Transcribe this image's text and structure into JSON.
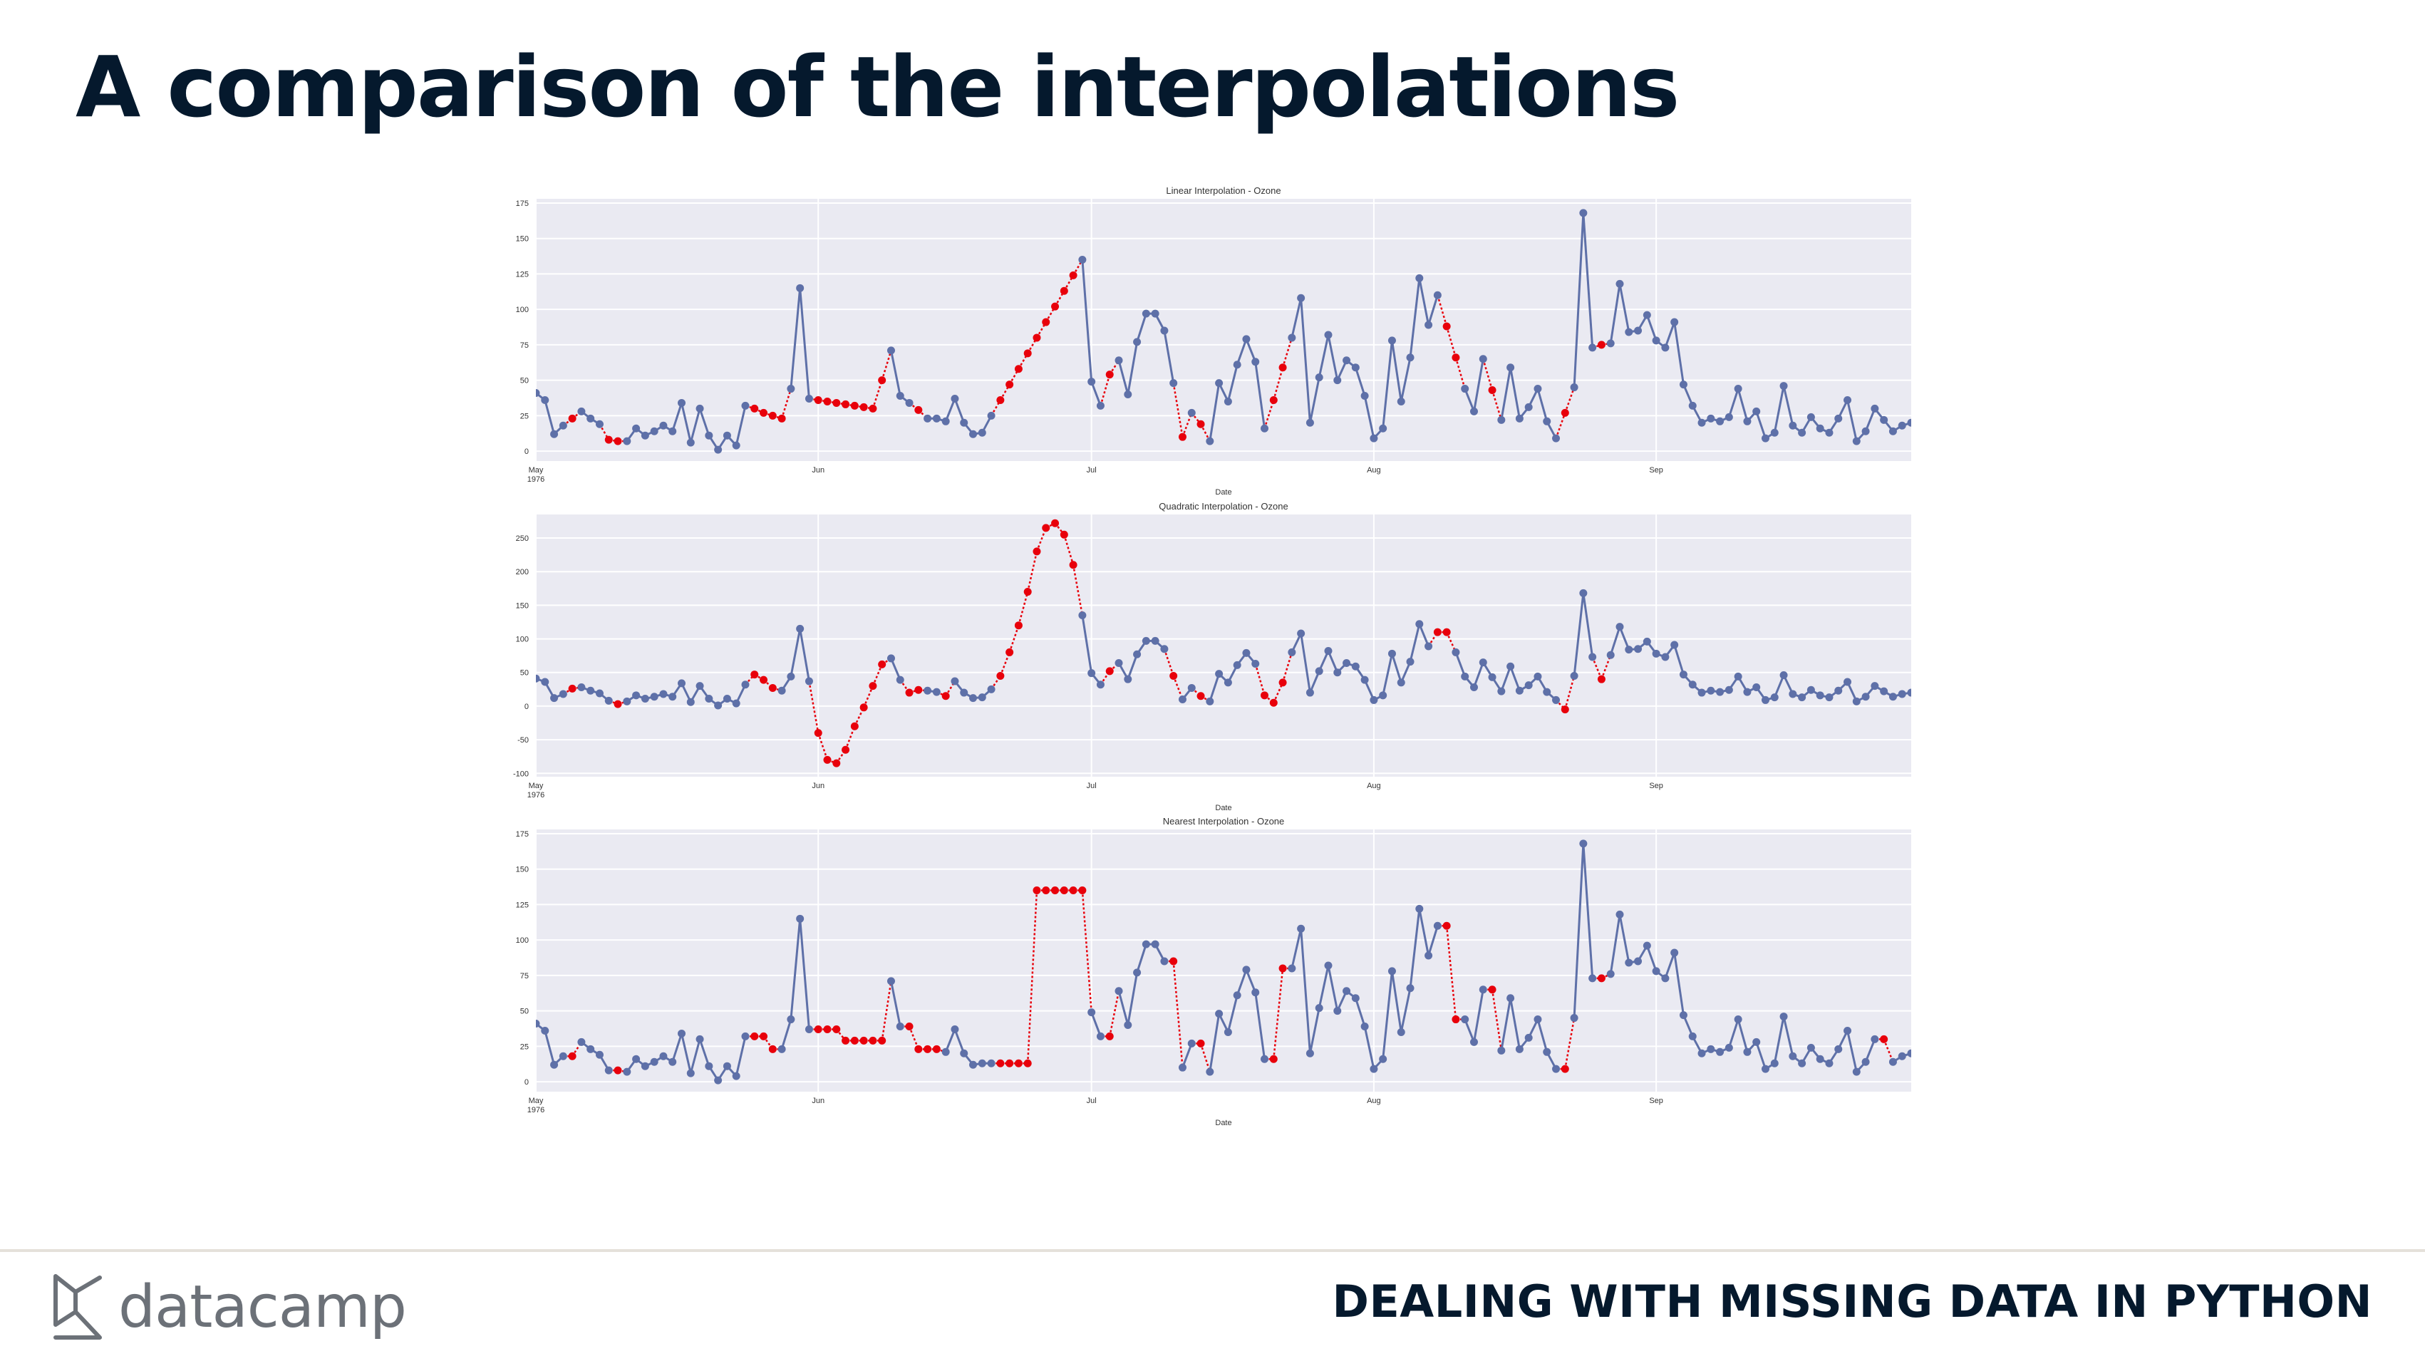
{
  "slide": {
    "title": "A comparison of the interpolations",
    "brand": "datacamp",
    "course": "DEALING WITH MISSING DATA IN PYTHON"
  },
  "colors": {
    "observed": "#5e70a8",
    "interpolated": "#e8000b",
    "plot_bg": "#eaeaf2",
    "title": "#05192d"
  },
  "chart_data": [
    {
      "type": "line",
      "title": "Linear Interpolation - Ozone",
      "xlabel": "Date",
      "ylabel": "",
      "x_range": [
        "1976-05-01",
        "1976-09-30"
      ],
      "x_ticks": [
        {
          "label": "May",
          "sub": "1976",
          "day": 0
        },
        {
          "label": "Jun",
          "day": 31
        },
        {
          "label": "Jul",
          "day": 61
        },
        {
          "label": "Aug",
          "day": 92
        },
        {
          "label": "Sep",
          "day": 123
        }
      ],
      "ylim": [
        -7,
        178
      ],
      "y_ticks": [
        0,
        25,
        50,
        75,
        100,
        125,
        150,
        175
      ],
      "grid": true,
      "series": [
        {
          "name": "Ozone",
          "values": [
            41,
            36,
            12,
            18,
            23,
            28,
            23,
            19,
            8,
            7,
            7,
            16,
            11,
            14,
            18,
            14,
            34,
            6,
            30,
            11,
            1,
            11,
            4,
            32,
            30,
            27,
            25,
            23,
            44,
            115,
            37,
            36,
            35,
            34,
            33,
            32,
            31,
            30,
            50,
            71,
            39,
            34,
            29,
            23,
            23,
            21,
            37,
            20,
            12,
            13,
            25,
            36,
            47,
            58,
            69,
            80,
            91,
            102,
            113,
            124,
            135,
            49,
            32,
            54,
            64,
            40,
            77,
            97,
            97,
            85,
            48,
            10,
            27,
            19,
            7,
            48,
            35,
            61,
            79,
            63,
            16,
            36,
            59,
            80,
            108,
            20,
            52,
            82,
            50,
            64,
            59,
            39,
            9,
            16,
            78,
            35,
            66,
            122,
            89,
            110,
            88,
            66,
            44,
            28,
            65,
            43,
            22,
            59,
            23,
            31,
            44,
            21,
            9,
            27,
            45,
            168,
            73,
            75,
            76,
            118,
            84,
            85,
            96,
            78,
            73,
            91,
            47,
            32,
            20,
            23,
            21,
            24,
            44,
            21,
            28,
            9,
            13,
            46,
            18,
            13,
            24,
            16,
            13,
            23,
            36,
            7,
            14,
            30,
            22,
            14,
            18,
            20
          ]
        }
      ],
      "interpolated_index": [
        4,
        8,
        9,
        24,
        25,
        26,
        27,
        31,
        32,
        33,
        34,
        35,
        36,
        37,
        38,
        42,
        51,
        52,
        53,
        54,
        55,
        56,
        57,
        58,
        59,
        63,
        71,
        73,
        81,
        82,
        100,
        101,
        105,
        113,
        117
      ]
    },
    {
      "type": "line",
      "title": "Quadratic Interpolation - Ozone",
      "xlabel": "Date",
      "ylabel": "",
      "x_range": [
        "1976-05-01",
        "1976-09-30"
      ],
      "x_ticks": [
        {
          "label": "May",
          "sub": "1976",
          "day": 0
        },
        {
          "label": "Jun",
          "day": 31
        },
        {
          "label": "Jul",
          "day": 61
        },
        {
          "label": "Aug",
          "day": 92
        },
        {
          "label": "Sep",
          "day": 123
        }
      ],
      "ylim": [
        -105,
        285
      ],
      "y_ticks": [
        -100,
        -50,
        0,
        50,
        100,
        150,
        200,
        250
      ],
      "grid": true,
      "series": [
        {
          "name": "Ozone",
          "values": [
            41,
            36,
            12,
            18,
            26,
            28,
            23,
            19,
            8,
            3,
            7,
            16,
            11,
            14,
            18,
            14,
            34,
            6,
            30,
            11,
            1,
            11,
            4,
            32,
            47,
            39,
            27,
            23,
            44,
            115,
            37,
            -40,
            -80,
            -85,
            -65,
            -30,
            -2,
            30,
            62,
            71,
            39,
            20,
            24,
            23,
            21,
            15,
            37,
            20,
            12,
            13,
            25,
            45,
            80,
            120,
            170,
            230,
            265,
            272,
            255,
            210,
            135,
            49,
            32,
            52,
            64,
            40,
            77,
            97,
            97,
            85,
            45,
            10,
            27,
            15,
            7,
            48,
            35,
            61,
            79,
            63,
            16,
            5,
            35,
            80,
            108,
            20,
            52,
            82,
            50,
            64,
            59,
            39,
            9,
            16,
            78,
            35,
            66,
            122,
            89,
            110,
            110,
            80,
            44,
            28,
            65,
            43,
            22,
            59,
            23,
            31,
            44,
            21,
            9,
            -5,
            45,
            168,
            73,
            40,
            76,
            118,
            84,
            85,
            96,
            78,
            73,
            91,
            47,
            32,
            20,
            23,
            21,
            24,
            44,
            21,
            28,
            9,
            13,
            46,
            18,
            13,
            24,
            16,
            13,
            23,
            36,
            7,
            14,
            30,
            22,
            14,
            18,
            20
          ]
        }
      ],
      "interpolated_index": [
        4,
        9,
        24,
        25,
        26,
        31,
        32,
        33,
        34,
        35,
        36,
        37,
        38,
        41,
        42,
        45,
        51,
        52,
        53,
        54,
        55,
        56,
        57,
        58,
        59,
        63,
        70,
        73,
        80,
        81,
        82,
        99,
        100,
        113,
        117
      ]
    },
    {
      "type": "line",
      "title": "Nearest Interpolation - Ozone",
      "xlabel": "Date",
      "ylabel": "",
      "x_range": [
        "1976-05-01",
        "1976-09-30"
      ],
      "x_ticks": [
        {
          "label": "May",
          "sub": "1976",
          "day": 0
        },
        {
          "label": "Jun",
          "day": 31
        },
        {
          "label": "Jul",
          "day": 61
        },
        {
          "label": "Aug",
          "day": 92
        },
        {
          "label": "Sep",
          "day": 123
        }
      ],
      "ylim": [
        -7,
        178
      ],
      "y_ticks": [
        0,
        25,
        50,
        75,
        100,
        125,
        150,
        175
      ],
      "grid": true,
      "series": [
        {
          "name": "Ozone",
          "values": [
            41,
            36,
            12,
            18,
            18,
            28,
            23,
            19,
            8,
            8,
            7,
            16,
            11,
            14,
            18,
            14,
            34,
            6,
            30,
            11,
            1,
            11,
            4,
            32,
            32,
            32,
            23,
            23,
            44,
            115,
            37,
            37,
            37,
            37,
            29,
            29,
            29,
            29,
            29,
            71,
            39,
            39,
            23,
            23,
            23,
            21,
            37,
            20,
            12,
            13,
            13,
            13,
            13,
            13,
            13,
            135,
            135,
            135,
            135,
            135,
            135,
            49,
            32,
            32,
            64,
            40,
            77,
            97,
            97,
            85,
            85,
            10,
            27,
            27,
            7,
            48,
            35,
            61,
            79,
            63,
            16,
            16,
            80,
            80,
            108,
            20,
            52,
            82,
            50,
            64,
            59,
            39,
            9,
            16,
            78,
            35,
            66,
            122,
            89,
            110,
            110,
            44,
            44,
            28,
            65,
            65,
            22,
            59,
            23,
            31,
            44,
            21,
            9,
            9,
            45,
            168,
            73,
            73,
            76,
            118,
            84,
            85,
            96,
            78,
            73,
            91,
            47,
            32,
            20,
            23,
            21,
            24,
            44,
            21,
            28,
            9,
            13,
            46,
            18,
            13,
            24,
            16,
            13,
            23,
            36,
            7,
            14,
            30,
            30,
            14,
            18,
            20
          ]
        }
      ],
      "interpolated_index": [
        4,
        9,
        24,
        25,
        26,
        31,
        32,
        33,
        34,
        35,
        36,
        37,
        38,
        41,
        42,
        43,
        44,
        51,
        52,
        53,
        54,
        55,
        56,
        57,
        58,
        59,
        60,
        63,
        70,
        73,
        81,
        82,
        100,
        101,
        105,
        113,
        117,
        148
      ]
    }
  ]
}
